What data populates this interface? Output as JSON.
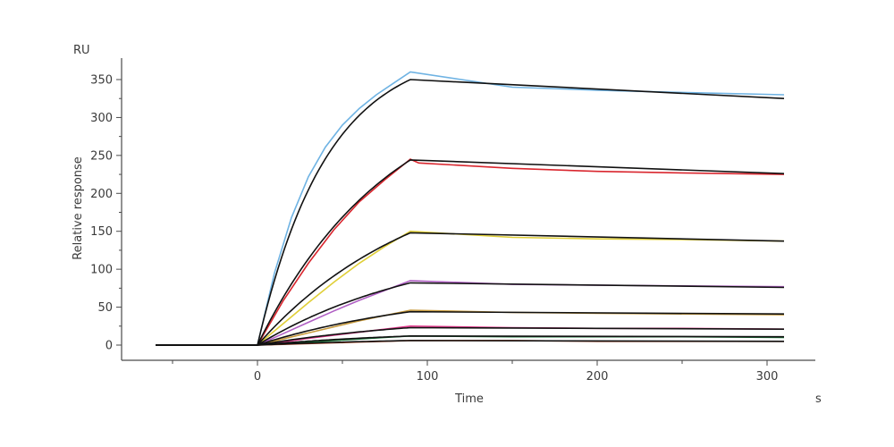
{
  "chart_data": {
    "type": "line",
    "title": "",
    "xlabel": "Time",
    "ylabel": "Relative response",
    "x_unit": "s",
    "y_unit": "RU",
    "xlim": [
      -60,
      310
    ],
    "ylim": [
      0,
      360
    ],
    "x_ticks": [
      0,
      100,
      200,
      300
    ],
    "y_ticks": [
      0,
      50,
      100,
      150,
      200,
      250,
      300,
      350
    ],
    "grid": false,
    "legend": "none",
    "association_end": 90,
    "fit_color": "#111111",
    "series": [
      {
        "color": "#6fb3e3",
        "values": [
          [
            -60,
            0
          ],
          [
            0,
            0
          ],
          [
            10,
            95
          ],
          [
            20,
            168
          ],
          [
            30,
            222
          ],
          [
            40,
            261
          ],
          [
            50,
            290
          ],
          [
            60,
            312
          ],
          [
            70,
            330
          ],
          [
            80,
            345
          ],
          [
            90,
            360
          ],
          [
            150,
            340
          ],
          [
            200,
            336
          ],
          [
            250,
            333
          ],
          [
            310,
            330
          ]
        ]
      },
      {
        "color": "#d9262e",
        "values": [
          [
            -60,
            0
          ],
          [
            0,
            0
          ],
          [
            15,
            58
          ],
          [
            30,
            108
          ],
          [
            45,
            152
          ],
          [
            60,
            189
          ],
          [
            75,
            218
          ],
          [
            90,
            245
          ],
          [
            95,
            240
          ],
          [
            150,
            233
          ],
          [
            200,
            229
          ],
          [
            250,
            227
          ],
          [
            310,
            225
          ]
        ]
      },
      {
        "color": "#e0cf38",
        "values": [
          [
            -60,
            0
          ],
          [
            0,
            0
          ],
          [
            15,
            28
          ],
          [
            30,
            56
          ],
          [
            45,
            83
          ],
          [
            60,
            108
          ],
          [
            75,
            130
          ],
          [
            90,
            150
          ],
          [
            150,
            142
          ],
          [
            200,
            140
          ],
          [
            250,
            139
          ],
          [
            310,
            137
          ]
        ]
      },
      {
        "color": "#b05fc4",
        "values": [
          [
            -60,
            0
          ],
          [
            0,
            0
          ],
          [
            15,
            15
          ],
          [
            30,
            30
          ],
          [
            45,
            45
          ],
          [
            60,
            59
          ],
          [
            75,
            72
          ],
          [
            90,
            85
          ],
          [
            150,
            80
          ],
          [
            200,
            79
          ],
          [
            250,
            78
          ],
          [
            310,
            77
          ]
        ]
      },
      {
        "color": "#c79a3c",
        "values": [
          [
            -60,
            0
          ],
          [
            0,
            0
          ],
          [
            15,
            8
          ],
          [
            30,
            16
          ],
          [
            45,
            24
          ],
          [
            60,
            32
          ],
          [
            75,
            39
          ],
          [
            90,
            46
          ],
          [
            150,
            43
          ],
          [
            200,
            42
          ],
          [
            250,
            41
          ],
          [
            310,
            40
          ]
        ]
      },
      {
        "color": "#e0368a",
        "values": [
          [
            -60,
            0
          ],
          [
            0,
            0
          ],
          [
            15,
            4
          ],
          [
            30,
            9
          ],
          [
            45,
            13
          ],
          [
            60,
            17
          ],
          [
            75,
            21
          ],
          [
            90,
            25
          ],
          [
            150,
            23
          ],
          [
            200,
            22
          ],
          [
            250,
            22
          ],
          [
            310,
            21
          ]
        ]
      },
      {
        "color": "#1e7a3c",
        "values": [
          [
            -60,
            0
          ],
          [
            0,
            0
          ],
          [
            15,
            2
          ],
          [
            30,
            4
          ],
          [
            45,
            6
          ],
          [
            60,
            8
          ],
          [
            75,
            10
          ],
          [
            90,
            12
          ],
          [
            150,
            11
          ],
          [
            200,
            11
          ],
          [
            250,
            11
          ],
          [
            310,
            10
          ]
        ]
      },
      {
        "color": "#b04a2a",
        "values": [
          [
            -60,
            0
          ],
          [
            0,
            0
          ],
          [
            15,
            1
          ],
          [
            30,
            2
          ],
          [
            45,
            3
          ],
          [
            60,
            4
          ],
          [
            75,
            5
          ],
          [
            90,
            6
          ],
          [
            150,
            6
          ],
          [
            200,
            5
          ],
          [
            250,
            5
          ],
          [
            310,
            5
          ]
        ]
      }
    ],
    "fits": [
      {
        "plateau": 350,
        "k_on": 0.0245,
        "end": 325
      },
      {
        "plateau": 244,
        "k_on": 0.0128,
        "end": 226
      },
      {
        "plateau": 148,
        "k_on": 0.0105,
        "end": 137
      },
      {
        "plateau": 82,
        "k_on": 0.0098,
        "end": 76
      },
      {
        "plateau": 44,
        "k_on": 0.0095,
        "end": 41
      },
      {
        "plateau": 23,
        "k_on": 0.0095,
        "end": 21
      },
      {
        "plateau": 12,
        "k_on": 0.0095,
        "end": 11
      },
      {
        "plateau": 6,
        "k_on": 0.0095,
        "end": 5
      }
    ]
  }
}
